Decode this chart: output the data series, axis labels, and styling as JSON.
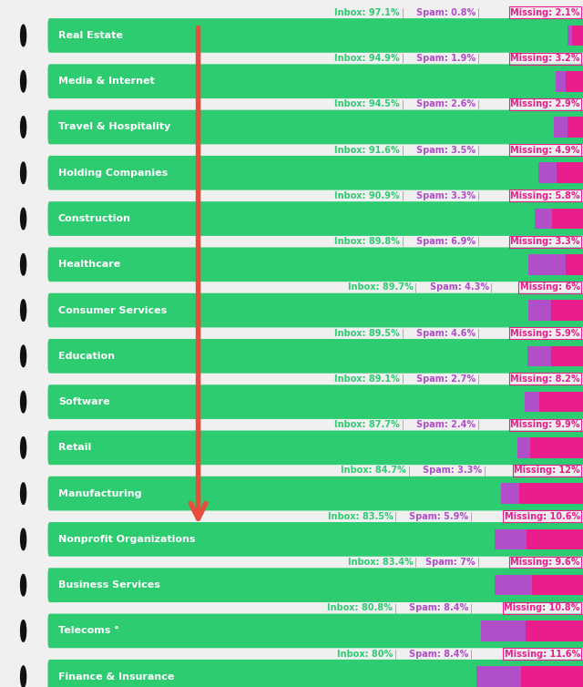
{
  "industries": [
    "Real Estate",
    "Media & Internet",
    "Travel & Hospitality",
    "Holding Companies",
    "Construction",
    "Healthcare",
    "Consumer Services",
    "Education",
    "Software",
    "Retail",
    "Manufacturing",
    "Nonprofit Organizations",
    "Business Services",
    "Telecoms °",
    "Finance & Insurance"
  ],
  "inbox": [
    97.1,
    94.9,
    94.5,
    91.6,
    90.9,
    89.8,
    89.7,
    89.5,
    89.1,
    87.7,
    84.7,
    83.5,
    83.4,
    80.8,
    80.0
  ],
  "spam": [
    0.8,
    1.9,
    2.6,
    3.5,
    3.3,
    6.9,
    4.3,
    4.6,
    2.7,
    2.4,
    3.3,
    5.9,
    7.0,
    8.4,
    8.4
  ],
  "missing": [
    2.1,
    3.2,
    2.9,
    4.9,
    5.8,
    3.3,
    6.0,
    5.9,
    8.2,
    9.9,
    12.0,
    10.6,
    9.6,
    10.8,
    11.6
  ],
  "inbox_color": "#2ecc71",
  "spam_color": "#b04fc8",
  "missing_color": "#e91e8c",
  "label_inbox_color": "#2ecc71",
  "label_spam_color": "#b04fc8",
  "label_missing_color": "#e91e8c",
  "background_color": "#f0f0f0",
  "icon_bg_color": "#111111",
  "bar_text_color": "#ffffff",
  "arrow_color": "#e74c3c"
}
